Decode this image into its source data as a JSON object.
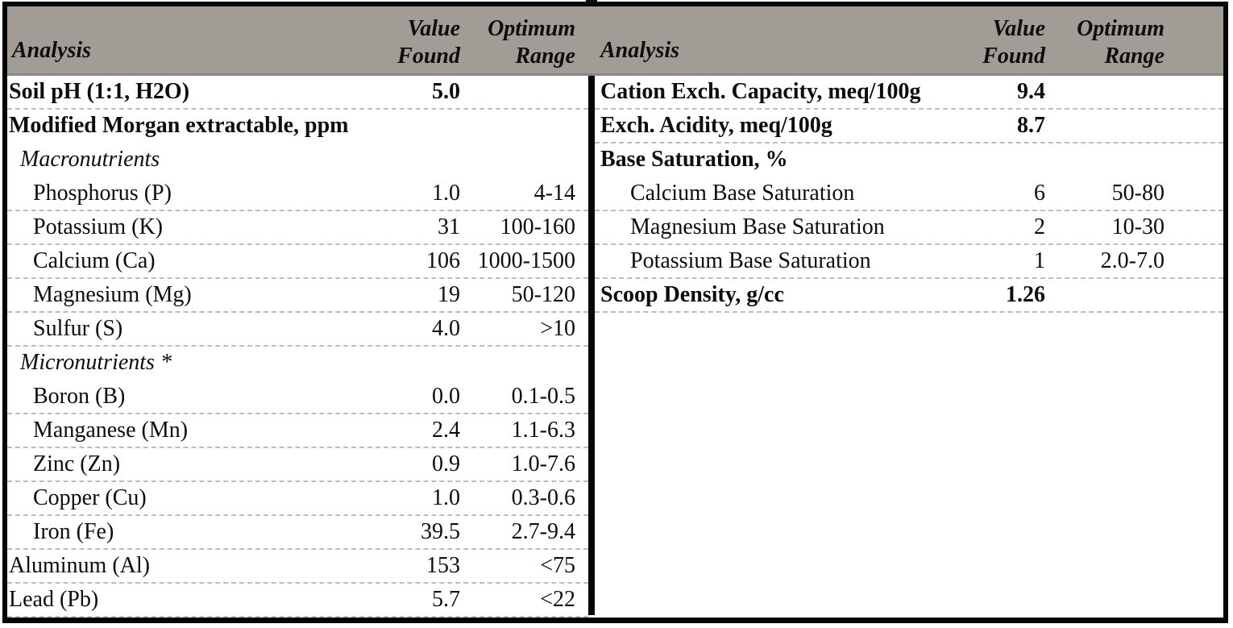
{
  "report": {
    "type_label": "soil-test-report-table"
  },
  "colors": {
    "header_band": "#a19c95",
    "header_band_edge": "#8b8781",
    "frame_border": "#050505",
    "row_rule": "#bcbcbc",
    "text": "#0d0d0d"
  },
  "columns": {
    "analysis": "Analysis",
    "value_line1": "Value",
    "value_line2": "Found",
    "range_line1": "Optimum",
    "range_line2": "Range"
  },
  "left_table": {
    "rows": [
      {
        "label": "Soil pH (1:1, H2O)",
        "value": "5.0",
        "range": "",
        "style": "bold",
        "indent": 0,
        "rule": true
      },
      {
        "label": "Modified Morgan extractable, ppm",
        "value": "",
        "range": "",
        "style": "bold",
        "indent": 0,
        "rule": false
      },
      {
        "label": "Macronutrients",
        "value": "",
        "range": "",
        "style": "italic",
        "indent": 1,
        "rule": false
      },
      {
        "label": "Phosphorus (P)",
        "value": "1.0",
        "range": "4-14",
        "style": "normal",
        "indent": 2,
        "rule": true
      },
      {
        "label": "Potassium (K)",
        "value": "31",
        "range": "100-160",
        "style": "normal",
        "indent": 2,
        "rule": true
      },
      {
        "label": "Calcium (Ca)",
        "value": "106",
        "range": "1000-1500",
        "style": "normal",
        "indent": 2,
        "rule": true
      },
      {
        "label": "Magnesium (Mg)",
        "value": "19",
        "range": "50-120",
        "style": "normal",
        "indent": 2,
        "rule": true
      },
      {
        "label": "Sulfur (S)",
        "value": "4.0",
        "range": ">10",
        "style": "normal",
        "indent": 2,
        "rule": true
      },
      {
        "label": "Micronutrients *",
        "value": "",
        "range": "",
        "style": "italic",
        "indent": 1,
        "rule": false
      },
      {
        "label": "Boron (B)",
        "value": "0.0",
        "range": "0.1-0.5",
        "style": "normal",
        "indent": 2,
        "rule": true
      },
      {
        "label": "Manganese (Mn)",
        "value": "2.4",
        "range": "1.1-6.3",
        "style": "normal",
        "indent": 2,
        "rule": true
      },
      {
        "label": "Zinc (Zn)",
        "value": "0.9",
        "range": "1.0-7.6",
        "style": "normal",
        "indent": 2,
        "rule": true
      },
      {
        "label": "Copper (Cu)",
        "value": "1.0",
        "range": "0.3-0.6",
        "style": "normal",
        "indent": 2,
        "rule": true
      },
      {
        "label": "Iron (Fe)",
        "value": "39.5",
        "range": "2.7-9.4",
        "style": "normal",
        "indent": 2,
        "rule": true
      },
      {
        "label": "Aluminum (Al)",
        "value": "153",
        "range": "<75",
        "style": "normal",
        "indent": 0,
        "rule": true
      },
      {
        "label": "Lead (Pb)",
        "value": "5.7",
        "range": "<22",
        "style": "normal",
        "indent": 0,
        "rule": true
      }
    ]
  },
  "right_table": {
    "rows": [
      {
        "label": "Cation Exch. Capacity, meq/100g",
        "value": "9.4",
        "range": "",
        "style": "bold",
        "indent": 0,
        "rule": true
      },
      {
        "label": "Exch. Acidity, meq/100g",
        "value": "8.7",
        "range": "",
        "style": "bold",
        "indent": 0,
        "rule": true
      },
      {
        "label": "Base Saturation, %",
        "value": "",
        "range": "",
        "style": "bold",
        "indent": 0,
        "rule": false
      },
      {
        "label": "Calcium Base Saturation",
        "value": "6",
        "range": "50-80",
        "style": "normal",
        "indent": 2,
        "rule": true
      },
      {
        "label": "Magnesium Base Saturation",
        "value": "2",
        "range": "10-30",
        "style": "normal",
        "indent": 2,
        "rule": true
      },
      {
        "label": "Potassium Base Saturation",
        "value": "1",
        "range": "2.0-7.0",
        "style": "normal",
        "indent": 2,
        "rule": true
      },
      {
        "label": "Scoop Density, g/cc",
        "value": "1.26",
        "range": "",
        "style": "bold",
        "indent": 0,
        "rule": true
      }
    ]
  }
}
